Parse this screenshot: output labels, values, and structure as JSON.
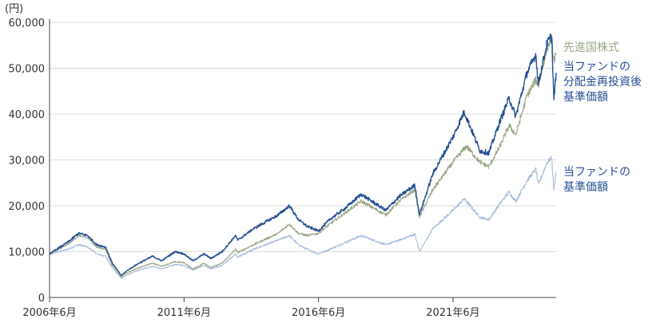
{
  "chart_data": {
    "type": "line",
    "y_unit_label": "(円)",
    "ylim": [
      0,
      60000
    ],
    "yticks": [
      "0",
      "10,000",
      "20,000",
      "30,000",
      "40,000",
      "50,000",
      "60,000"
    ],
    "ytick_values": [
      0,
      10000,
      20000,
      30000,
      40000,
      50000,
      60000
    ],
    "x_range": [
      "2006-06",
      "2025-04"
    ],
    "xticks": [
      {
        "date": "2006-06",
        "label": "2006年6月"
      },
      {
        "date": "2011-06",
        "label": "2011年6月"
      },
      {
        "date": "2016-06",
        "label": "2016年6月"
      },
      {
        "date": "2021-06",
        "label": "2021年6月"
      }
    ],
    "grid": "horizontal",
    "legend_placement": "right-inline",
    "series": [
      {
        "name": "先進国株式",
        "color": "#9aa886",
        "label_lines": [
          "先進国株式"
        ],
        "points": [
          [
            "2006-06",
            9500
          ],
          [
            "2007-02",
            11500
          ],
          [
            "2007-07",
            13500
          ],
          [
            "2007-11",
            13000
          ],
          [
            "2008-03",
            11000
          ],
          [
            "2008-07",
            10500
          ],
          [
            "2008-10",
            7000
          ],
          [
            "2009-02",
            4500
          ],
          [
            "2009-05",
            5500
          ],
          [
            "2009-10",
            6500
          ],
          [
            "2010-04",
            7500
          ],
          [
            "2010-08",
            6800
          ],
          [
            "2011-02",
            7800
          ],
          [
            "2011-06",
            7600
          ],
          [
            "2011-10",
            6200
          ],
          [
            "2012-03",
            7500
          ],
          [
            "2012-06",
            6500
          ],
          [
            "2012-11",
            7500
          ],
          [
            "2013-05",
            10500
          ],
          [
            "2013-06",
            9800
          ],
          [
            "2014-01",
            11500
          ],
          [
            "2014-12",
            14000
          ],
          [
            "2015-05",
            16000
          ],
          [
            "2015-09",
            14000
          ],
          [
            "2016-01",
            13500
          ],
          [
            "2016-06",
            14000
          ],
          [
            "2016-11",
            16000
          ],
          [
            "2017-06",
            18500
          ],
          [
            "2018-01",
            21000
          ],
          [
            "2018-12",
            18000
          ],
          [
            "2019-06",
            21000
          ],
          [
            "2020-01",
            23500
          ],
          [
            "2020-03",
            17500
          ],
          [
            "2020-09",
            23500
          ],
          [
            "2021-06",
            29500
          ],
          [
            "2021-12",
            33000
          ],
          [
            "2022-06",
            29500
          ],
          [
            "2022-10",
            28500
          ],
          [
            "2023-03",
            33000
          ],
          [
            "2023-07",
            37500
          ],
          [
            "2023-10",
            35500
          ],
          [
            "2024-03",
            44000
          ],
          [
            "2024-07",
            47500
          ],
          [
            "2024-08",
            46000
          ],
          [
            "2024-12",
            54500
          ],
          [
            "2025-02",
            56500
          ],
          [
            "2025-03",
            51500
          ],
          [
            "2025-04",
            53000
          ]
        ]
      },
      {
        "name": "当ファンドの分配金再投資後基準価額",
        "color": "#264f94",
        "label_lines": [
          "当ファンドの",
          "分配金再投資後",
          "基準価額"
        ],
        "points": [
          [
            "2006-06",
            9500
          ],
          [
            "2007-02",
            12000
          ],
          [
            "2007-07",
            14000
          ],
          [
            "2007-11",
            13500
          ],
          [
            "2008-03",
            11500
          ],
          [
            "2008-07",
            11000
          ],
          [
            "2008-10",
            7500
          ],
          [
            "2009-02",
            4800
          ],
          [
            "2009-05",
            6000
          ],
          [
            "2009-10",
            7500
          ],
          [
            "2010-04",
            9000
          ],
          [
            "2010-08",
            8000
          ],
          [
            "2011-02",
            10000
          ],
          [
            "2011-06",
            9500
          ],
          [
            "2011-10",
            8000
          ],
          [
            "2012-03",
            9500
          ],
          [
            "2012-06",
            8500
          ],
          [
            "2012-11",
            10000
          ],
          [
            "2013-05",
            13500
          ],
          [
            "2013-06",
            12500
          ],
          [
            "2014-01",
            15000
          ],
          [
            "2014-12",
            18000
          ],
          [
            "2015-05",
            20000
          ],
          [
            "2015-09",
            17000
          ],
          [
            "2016-01",
            15500
          ],
          [
            "2016-06",
            14500
          ],
          [
            "2016-11",
            17000
          ],
          [
            "2017-06",
            19500
          ],
          [
            "2018-01",
            22500
          ],
          [
            "2018-12",
            19000
          ],
          [
            "2019-06",
            22000
          ],
          [
            "2020-01",
            24500
          ],
          [
            "2020-03",
            18000
          ],
          [
            "2020-09",
            27000
          ],
          [
            "2021-06",
            35000
          ],
          [
            "2021-11",
            40500
          ],
          [
            "2022-06",
            32000
          ],
          [
            "2022-10",
            31500
          ],
          [
            "2023-03",
            38500
          ],
          [
            "2023-07",
            43500
          ],
          [
            "2023-10",
            39500
          ],
          [
            "2024-03",
            49000
          ],
          [
            "2024-07",
            53000
          ],
          [
            "2024-08",
            46500
          ],
          [
            "2024-12",
            55500
          ],
          [
            "2025-02",
            57000
          ],
          [
            "2025-03",
            43000
          ],
          [
            "2025-04",
            49000
          ]
        ]
      },
      {
        "name": "当ファンドの基準価額",
        "color": "#a9bedd",
        "label_lines": [
          "当ファンドの",
          "基準価額"
        ],
        "points": [
          [
            "2006-06",
            9500
          ],
          [
            "2007-02",
            10500
          ],
          [
            "2007-07",
            11500
          ],
          [
            "2007-11",
            11000
          ],
          [
            "2008-03",
            9500
          ],
          [
            "2008-07",
            9000
          ],
          [
            "2008-10",
            6500
          ],
          [
            "2009-02",
            4200
          ],
          [
            "2009-05",
            5000
          ],
          [
            "2009-10",
            6000
          ],
          [
            "2010-04",
            6800
          ],
          [
            "2010-08",
            6200
          ],
          [
            "2011-02",
            7200
          ],
          [
            "2011-06",
            7000
          ],
          [
            "2011-10",
            6000
          ],
          [
            "2012-03",
            7000
          ],
          [
            "2012-06",
            6200
          ],
          [
            "2012-11",
            7000
          ],
          [
            "2013-05",
            9500
          ],
          [
            "2013-06",
            8800
          ],
          [
            "2014-01",
            10500
          ],
          [
            "2014-12",
            12500
          ],
          [
            "2015-05",
            13500
          ],
          [
            "2015-09",
            11500
          ],
          [
            "2016-01",
            10500
          ],
          [
            "2016-06",
            9500
          ],
          [
            "2016-11",
            10500
          ],
          [
            "2017-06",
            12000
          ],
          [
            "2018-01",
            13500
          ],
          [
            "2018-12",
            11500
          ],
          [
            "2019-06",
            12500
          ],
          [
            "2020-01",
            13800
          ],
          [
            "2020-03",
            10000
          ],
          [
            "2020-09",
            15000
          ],
          [
            "2021-06",
            19000
          ],
          [
            "2021-11",
            21500
          ],
          [
            "2022-06",
            17500
          ],
          [
            "2022-10",
            17000
          ],
          [
            "2023-03",
            20500
          ],
          [
            "2023-07",
            23000
          ],
          [
            "2023-10",
            21000
          ],
          [
            "2024-03",
            25500
          ],
          [
            "2024-07",
            28000
          ],
          [
            "2024-08",
            24500
          ],
          [
            "2024-12",
            29500
          ],
          [
            "2025-02",
            30500
          ],
          [
            "2025-03",
            23500
          ],
          [
            "2025-04",
            27500
          ]
        ]
      }
    ]
  }
}
